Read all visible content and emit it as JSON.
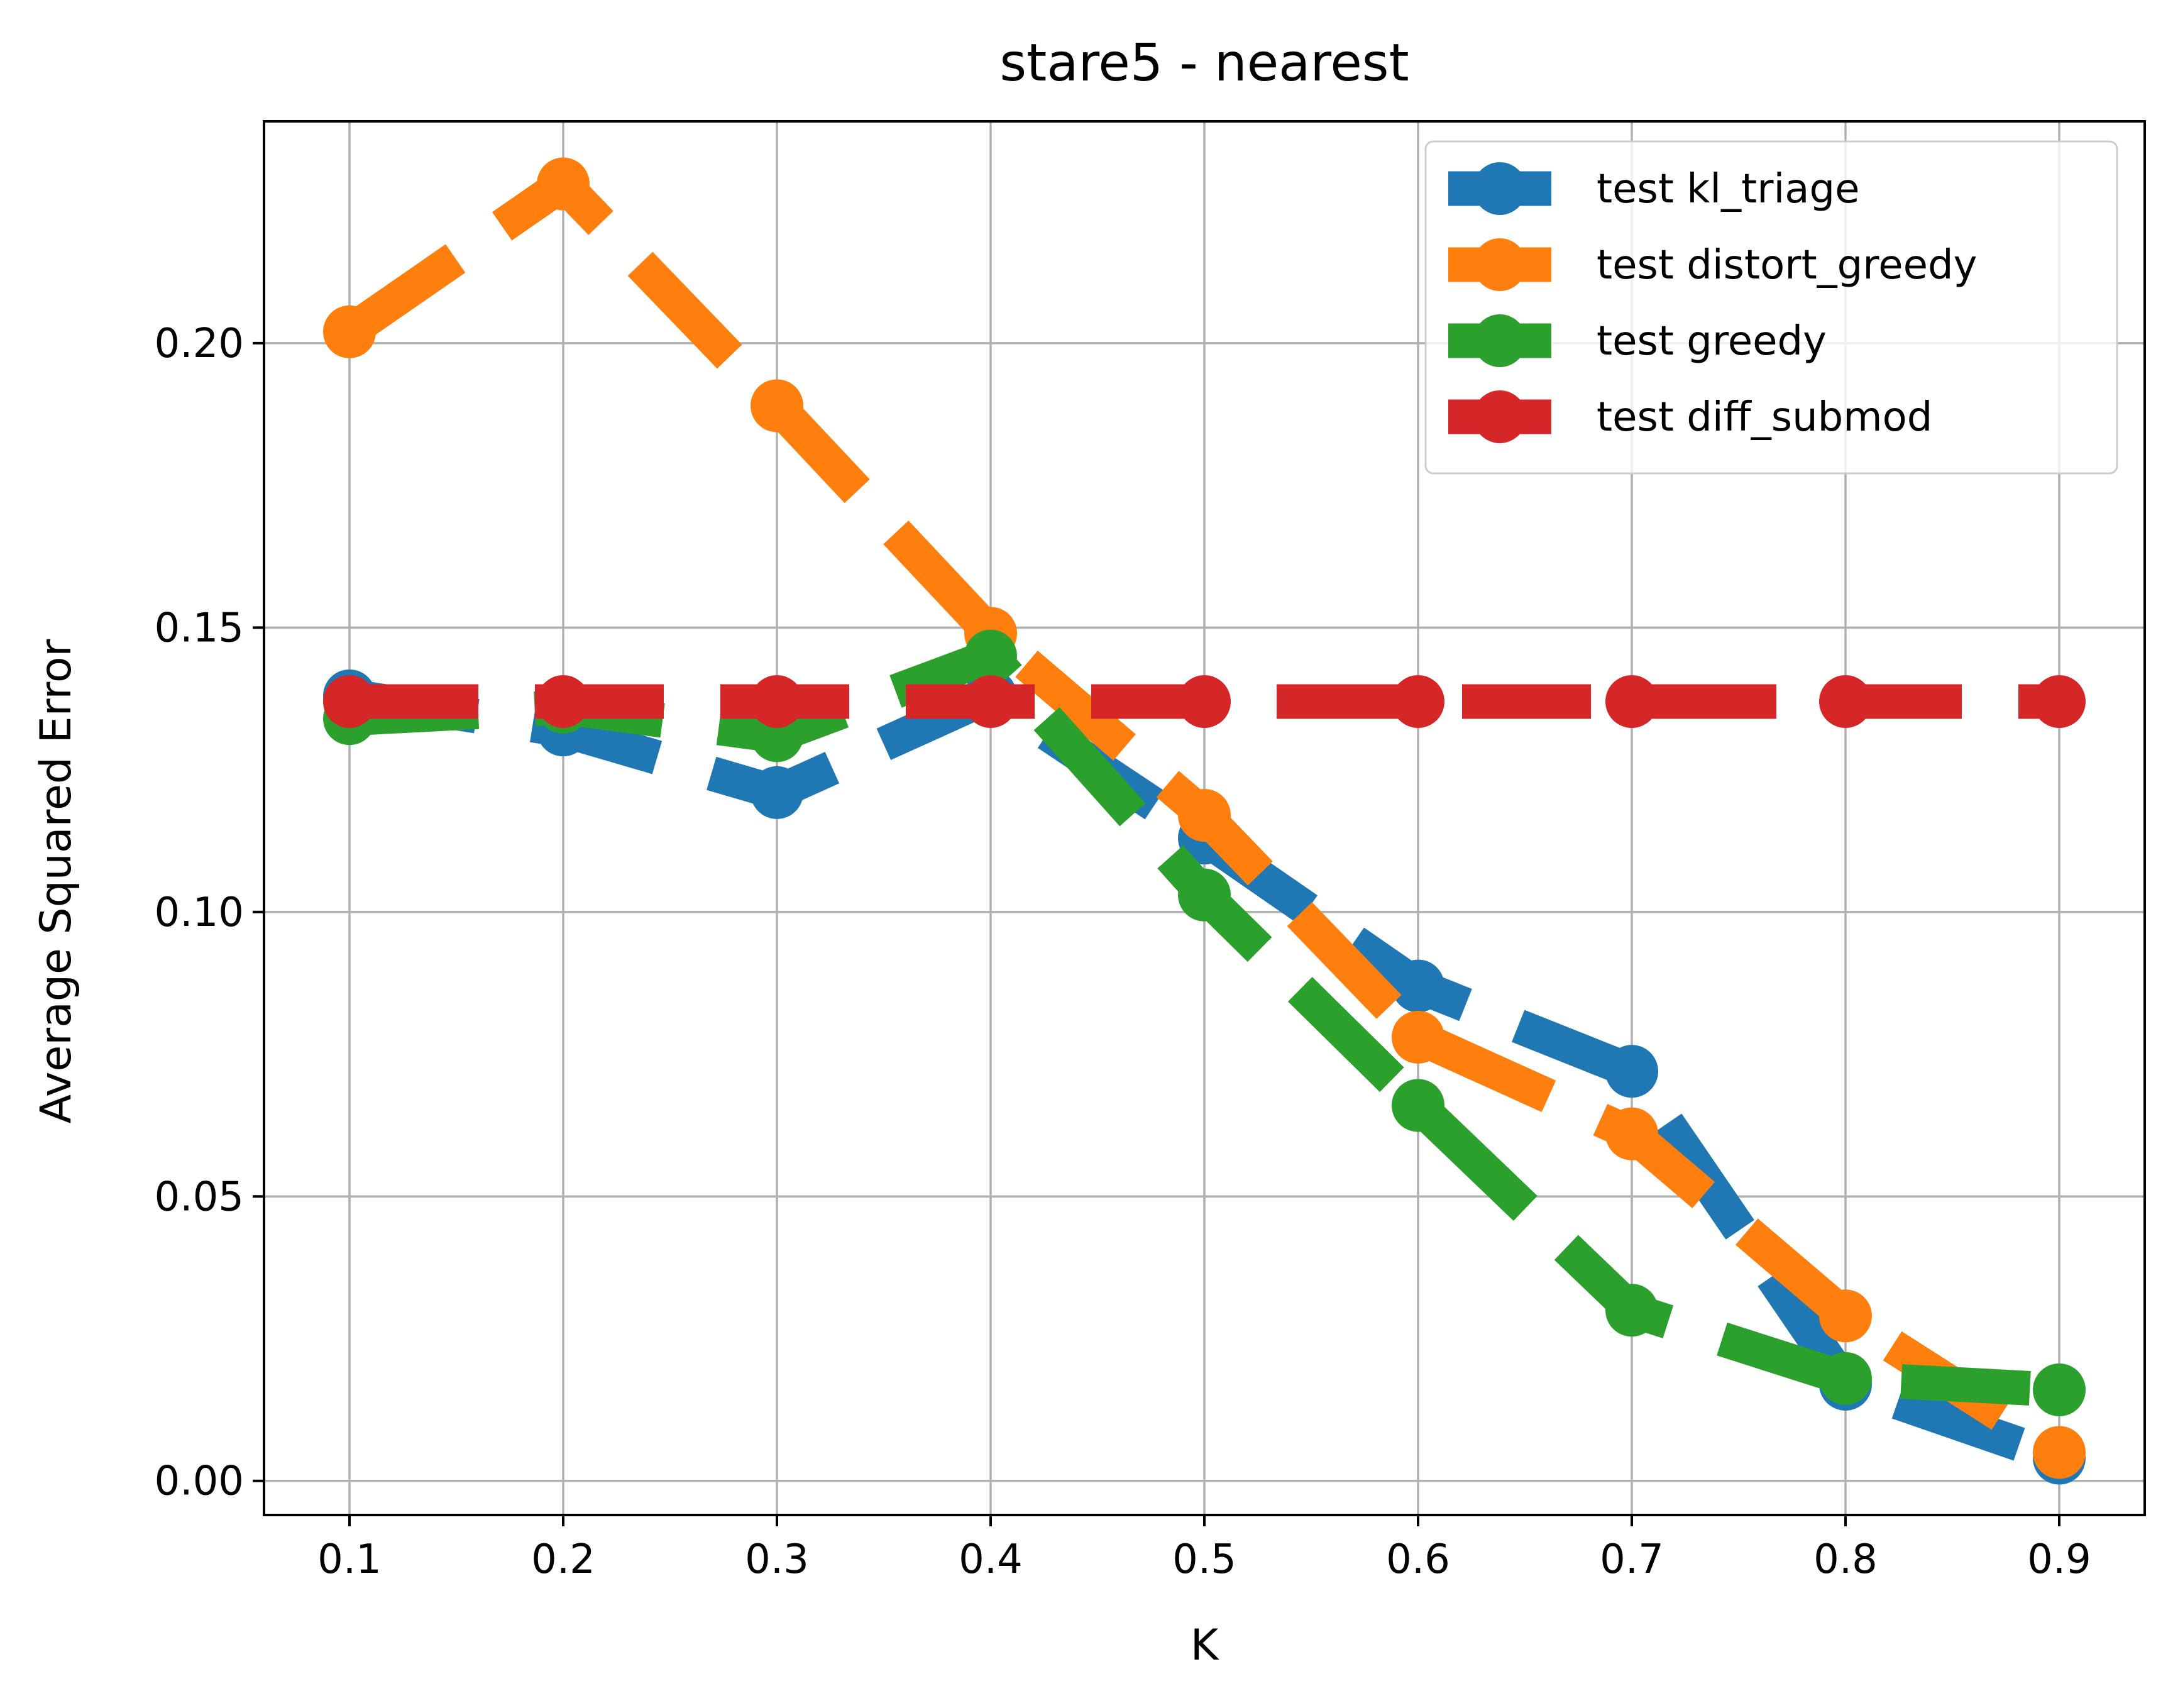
{
  "chart_data": {
    "type": "line",
    "title": "stare5 - nearest",
    "xlabel": "K",
    "ylabel": "Average Squared Error",
    "x": [
      0.1,
      0.2,
      0.3,
      0.4,
      0.5,
      0.6,
      0.7,
      0.8,
      0.9
    ],
    "x_tick_labels": [
      "0.1",
      "0.2",
      "0.3",
      "0.4",
      "0.5",
      "0.6",
      "0.7",
      "0.8",
      "0.9"
    ],
    "y_ticks": [
      0.0,
      0.05,
      0.1,
      0.15,
      0.2
    ],
    "y_tick_labels": [
      "0.00",
      "0.05",
      "0.10",
      "0.15",
      "0.20"
    ],
    "xlim": [
      0.06,
      0.94
    ],
    "ylim": [
      -0.006,
      0.239
    ],
    "grid": true,
    "legend_position": "top-right",
    "line_style": "dashed",
    "series": [
      {
        "name": "test kl_triage",
        "color": "#1f77b4",
        "values": [
          0.138,
          0.132,
          0.121,
          0.138,
          0.113,
          0.087,
          0.072,
          0.017,
          0.004
        ]
      },
      {
        "name": "test distort_greedy",
        "color": "#ff7f0e",
        "values": [
          0.202,
          0.228,
          0.189,
          0.149,
          0.117,
          0.078,
          0.061,
          0.029,
          0.005
        ]
      },
      {
        "name": "test greedy",
        "color": "#2ca02c",
        "values": [
          0.134,
          0.136,
          0.131,
          0.145,
          0.103,
          0.066,
          0.03,
          0.018,
          0.016
        ]
      },
      {
        "name": "test diff_submod",
        "color": "#d62728",
        "values": [
          0.137,
          0.137,
          0.137,
          0.137,
          0.137,
          0.137,
          0.137,
          0.137,
          0.137
        ]
      }
    ]
  }
}
